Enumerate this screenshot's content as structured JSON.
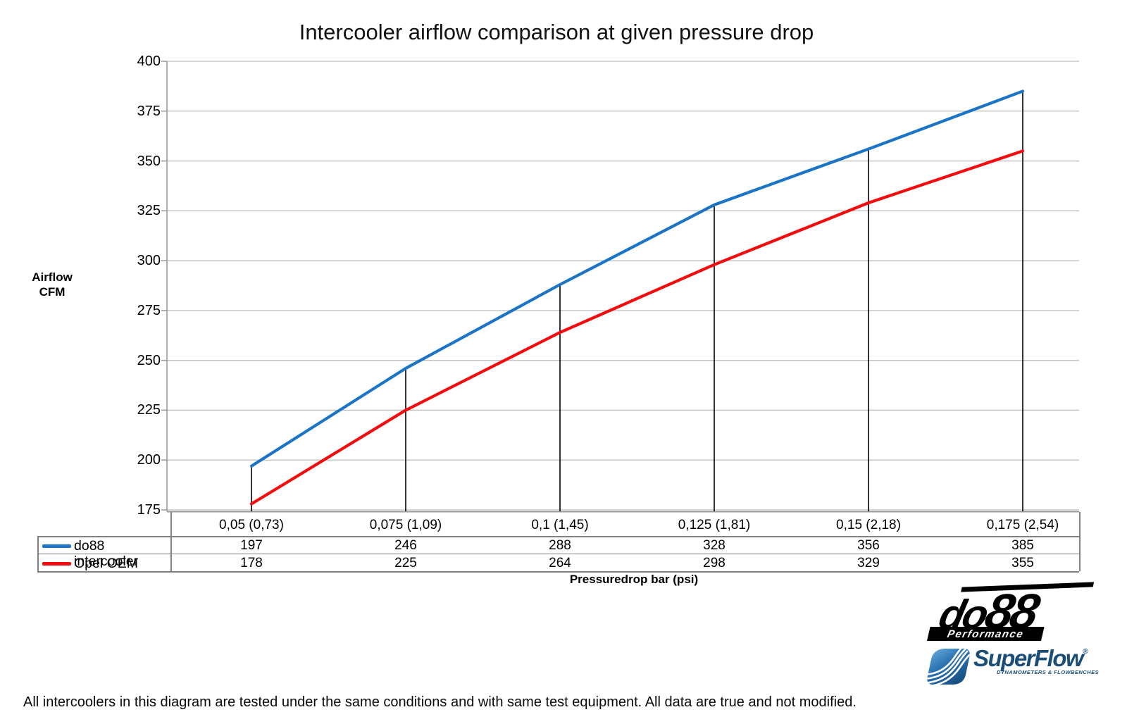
{
  "title": "Intercooler airflow comparison at given pressure drop",
  "footnote": "All intercoolers in this diagram are tested under the same conditions and with same test equipment. All data are true and not modified.",
  "chart_data": {
    "type": "line",
    "title": "Intercooler airflow comparison at given pressure drop",
    "ylabel_lines": [
      "Airflow",
      "CFM"
    ],
    "xlabel": "Pressuredrop bar (psi)",
    "categories": [
      "0,05 (0,73)",
      "0,075 (1,09)",
      "0,1 (1,45)",
      "0,125 (1,81)",
      "0,15 (2,18)",
      "0,175 (2,54)"
    ],
    "series": [
      {
        "name": "do88 intercooler",
        "color": "#1B74C5",
        "values": [
          197,
          246,
          288,
          328,
          356,
          385
        ]
      },
      {
        "name": "Opel OEM",
        "color": "#F40B0E",
        "values": [
          178,
          225,
          264,
          298,
          329,
          355
        ]
      }
    ],
    "ylim": [
      175,
      400
    ],
    "ytick_step": 25,
    "grid": "horizontal",
    "gridline_color": "#BFBFBF",
    "axis_color": "#9B9B9B",
    "dropline_color": "#000000",
    "table_border_color": "#808080",
    "droplines": true,
    "legend_position": "data-table-left"
  },
  "logos": {
    "do88": {
      "text_do": "do",
      "text_88": "88",
      "subtext": "Performance"
    },
    "superflow": {
      "text": "SuperFlow",
      "reg": "®",
      "subtext": "DYNAMOMETERS & FLOWBENCHES"
    }
  }
}
